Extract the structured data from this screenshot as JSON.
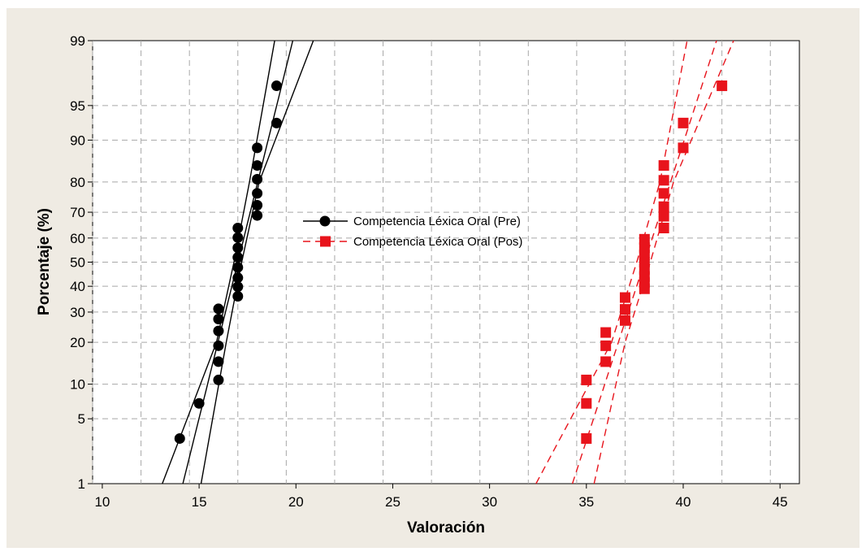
{
  "chart_data": {
    "type": "scatter",
    "title": "",
    "xlabel": "Valoración",
    "ylabel": "Porcentaje (%)",
    "xlim": [
      9.5,
      46
    ],
    "ylim": [
      1,
      99
    ],
    "y_scale": "normal-probability",
    "x_ticks": [
      10,
      15,
      20,
      25,
      30,
      35,
      40,
      45
    ],
    "y_ticks": [
      1,
      5,
      10,
      20,
      30,
      40,
      50,
      60,
      70,
      80,
      90,
      95,
      99
    ],
    "grid": true,
    "legend_position": "center",
    "series": [
      {
        "name": "Competencia Léxica Oral (Pre)",
        "color": "#000000",
        "marker": "circle",
        "line_style": "solid",
        "points": [
          {
            "x": 14,
            "y": 3.2
          },
          {
            "x": 15,
            "y": 6.9
          },
          {
            "x": 16,
            "y": 10.8
          },
          {
            "x": 16,
            "y": 14.8
          },
          {
            "x": 16,
            "y": 19.0
          },
          {
            "x": 16,
            "y": 23.5
          },
          {
            "x": 16,
            "y": 27.5
          },
          {
            "x": 16,
            "y": 31.2
          },
          {
            "x": 17,
            "y": 36.0
          },
          {
            "x": 17,
            "y": 39.8
          },
          {
            "x": 17,
            "y": 43.5
          },
          {
            "x": 17,
            "y": 47.8
          },
          {
            "x": 17,
            "y": 52.0
          },
          {
            "x": 17,
            "y": 56.0
          },
          {
            "x": 17,
            "y": 60.2
          },
          {
            "x": 17,
            "y": 64.0
          },
          {
            "x": 18,
            "y": 68.8
          },
          {
            "x": 18,
            "y": 72.5
          },
          {
            "x": 18,
            "y": 76.5
          },
          {
            "x": 18,
            "y": 80.8
          },
          {
            "x": 18,
            "y": 84.5
          },
          {
            "x": 18,
            "y": 88.5
          },
          {
            "x": 19,
            "y": 92.8
          },
          {
            "x": 19,
            "y": 96.8
          }
        ],
        "fit": {
          "mean": 17.0,
          "sd": 1.22
        },
        "ci": {
          "lower": [
            {
              "x": 15.1,
              "y": 1
            },
            {
              "x": 16.4,
              "y": 20
            },
            {
              "x": 17.2,
              "y": 50
            },
            {
              "x": 18.1,
              "y": 80
            },
            {
              "x": 20.9,
              "y": 99
            }
          ],
          "upper": [
            {
              "x": 13.1,
              "y": 1
            },
            {
              "x": 15.9,
              "y": 20
            },
            {
              "x": 16.8,
              "y": 50
            },
            {
              "x": 17.6,
              "y": 80
            },
            {
              "x": 18.9,
              "y": 99
            }
          ]
        }
      },
      {
        "name": "Competencia Léxica Oral (Pos)",
        "color": "#e8141c",
        "marker": "square",
        "line_style": "dashed",
        "points": [
          {
            "x": 35,
            "y": 3.2
          },
          {
            "x": 35,
            "y": 6.9
          },
          {
            "x": 35,
            "y": 10.8
          },
          {
            "x": 36,
            "y": 14.8
          },
          {
            "x": 36,
            "y": 19.0
          },
          {
            "x": 36,
            "y": 23.0
          },
          {
            "x": 37,
            "y": 27.0
          },
          {
            "x": 37,
            "y": 31.0
          },
          {
            "x": 37,
            "y": 35.5
          },
          {
            "x": 38,
            "y": 39.0
          },
          {
            "x": 38,
            "y": 41.5
          },
          {
            "x": 38,
            "y": 44.0
          },
          {
            "x": 38,
            "y": 47.0
          },
          {
            "x": 38,
            "y": 50.0
          },
          {
            "x": 38,
            "y": 53.0
          },
          {
            "x": 38,
            "y": 56.0
          },
          {
            "x": 38,
            "y": 59.5
          },
          {
            "x": 39,
            "y": 64.0
          },
          {
            "x": 39,
            "y": 68.5
          },
          {
            "x": 39,
            "y": 72.0
          },
          {
            "x": 39,
            "y": 76.5
          },
          {
            "x": 39,
            "y": 80.5
          },
          {
            "x": 39,
            "y": 84.5
          },
          {
            "x": 40,
            "y": 88.5
          },
          {
            "x": 40,
            "y": 92.8
          },
          {
            "x": 42,
            "y": 96.8
          }
        ],
        "fit": {
          "mean": 38.0,
          "sd": 1.6
        },
        "ci": {
          "lower": [
            {
              "x": 35.4,
              "y": 1
            },
            {
              "x": 37.0,
              "y": 20
            },
            {
              "x": 38.3,
              "y": 50
            },
            {
              "x": 39.5,
              "y": 80
            },
            {
              "x": 42.6,
              "y": 99
            }
          ],
          "upper": [
            {
              "x": 32.4,
              "y": 1
            },
            {
              "x": 36.3,
              "y": 20
            },
            {
              "x": 37.6,
              "y": 50
            },
            {
              "x": 38.8,
              "y": 80
            },
            {
              "x": 40.2,
              "y": 99
            }
          ]
        }
      }
    ]
  }
}
